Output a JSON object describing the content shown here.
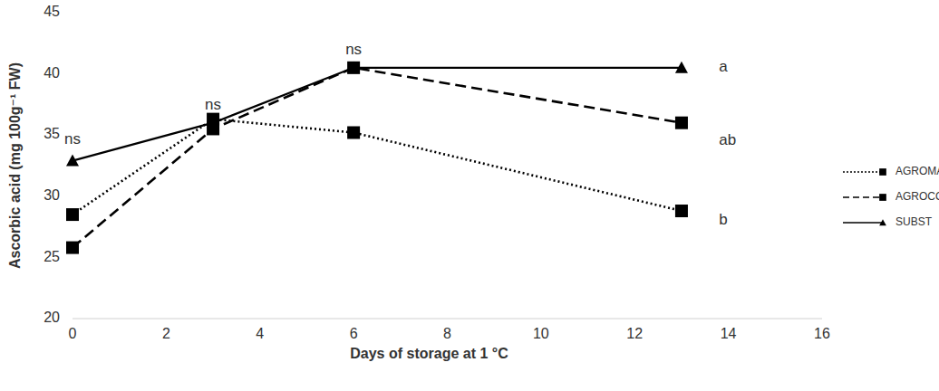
{
  "chart_data": {
    "type": "line",
    "x_label": "Days of storage at 1 °C",
    "y_label": "Ascorbic acid (mg 100g⁻¹ FW)",
    "x": [
      0,
      3,
      6,
      13
    ],
    "series": [
      {
        "name": "AGROMAN",
        "color": "#000000",
        "marker": "square",
        "line_style": "dotted",
        "values": [
          28.5,
          36.3,
          35.2,
          28.8
        ]
      },
      {
        "name": "AGROCOM",
        "color": "#000000",
        "marker": "square",
        "line_style": "dashed",
        "values": [
          25.8,
          35.5,
          40.5,
          36.0
        ]
      },
      {
        "name": "SUBST",
        "color": "#000000",
        "marker": "triangle",
        "line_style": "solid",
        "values": [
          32.9,
          36.0,
          40.5,
          40.5
        ]
      }
    ],
    "xlim": [
      0,
      16
    ],
    "xticks": [
      0,
      2,
      4,
      6,
      8,
      10,
      12,
      14,
      16
    ],
    "ylim": [
      20,
      45
    ],
    "yticks": [
      20,
      25,
      30,
      35,
      40,
      45
    ],
    "grid": false,
    "legend": "right",
    "annotations": [
      {
        "text": "ns",
        "x": 0,
        "y": 34.6
      },
      {
        "text": "ns",
        "x": 3,
        "y": 37.4
      },
      {
        "text": "ns",
        "x": 6,
        "y": 41.9
      },
      {
        "text": "a",
        "x": 13.8,
        "y": 40.5
      },
      {
        "text": "ab",
        "x": 13.8,
        "y": 34.5
      },
      {
        "text": "b",
        "x": 13.8,
        "y": 28.0
      }
    ]
  }
}
